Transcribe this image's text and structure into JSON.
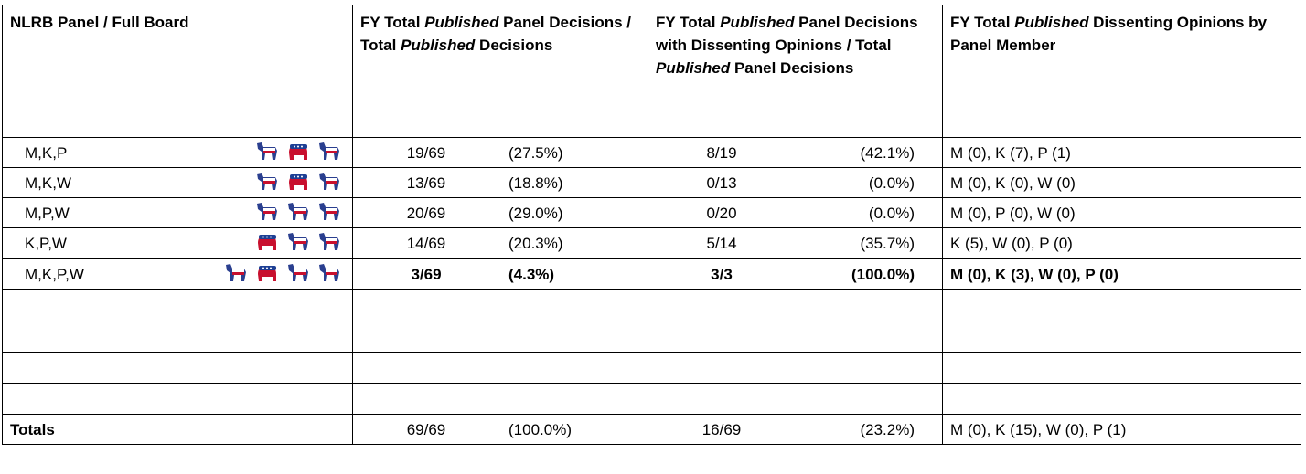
{
  "header": [
    [
      "NLRB Panel / Full Board"
    ],
    [
      "FY Total ",
      "Published",
      " Panel Decisions / Total ",
      "Published",
      " Decisions"
    ],
    [
      "FY Total ",
      "Published",
      " Panel Decisions with Dissenting Opinions / Total ",
      "Published",
      " Panel Decisions"
    ],
    [
      "FY Total ",
      "Published",
      " Dissenting Opinions by Panel Member"
    ]
  ],
  "rows": [
    {
      "panel": "M,K,P",
      "decisions": "19/69",
      "decisions_pct": "(27.5%)",
      "dissents": "8/19",
      "dissents_pct": "(42.1%)",
      "members": "M (0), K (7), P (1)"
    },
    {
      "panel": "M,K,W",
      "decisions": "13/69",
      "decisions_pct": "(18.8%)",
      "dissents": "0/13",
      "dissents_pct": "(0.0%)",
      "members": "M (0), K (0), W (0)"
    },
    {
      "panel": "M,P,W",
      "decisions": "20/69",
      "decisions_pct": "(29.0%)",
      "dissents": "0/20",
      "dissents_pct": "(0.0%)",
      "members": "M (0), P (0), W (0)"
    },
    {
      "panel": "K,P,W",
      "decisions": "14/69",
      "decisions_pct": "(20.3%)",
      "dissents": "5/14",
      "dissents_pct": "(35.7%)",
      "members": "K (5), W (0), P (0)"
    },
    {
      "panel": "M,K,P,W",
      "decisions": "3/69",
      "decisions_pct": "(4.3%)",
      "dissents": "3/3",
      "dissents_pct": "(100.0%)",
      "members": "M (0), K (3), W (0), P (0)"
    }
  ],
  "totals": {
    "label": "Totals",
    "decisions": "69/69",
    "decisions_pct": "(100.0%)",
    "dissents": "16/69",
    "dissents_pct": "(23.2%)",
    "members": "M (0), K (15), W (0), P (1)"
  }
}
